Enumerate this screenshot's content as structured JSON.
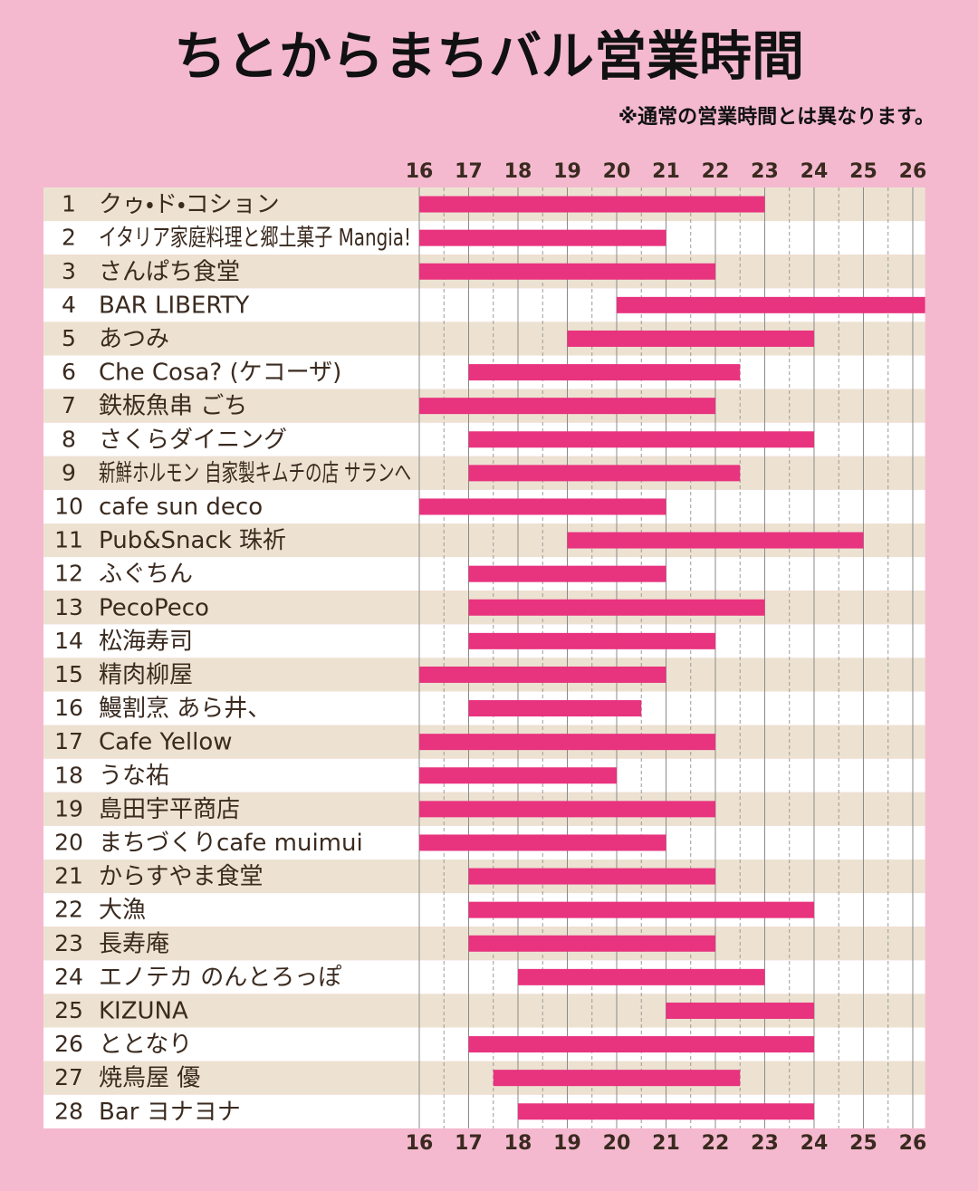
{
  "chart_data": {
    "type": "gantt",
    "title": "ちとからまちバル営業時間",
    "subtitle": "※通常の営業時間とは異なります。",
    "xlim": [
      16,
      26.25
    ],
    "xticks": [
      16,
      17,
      18,
      19,
      20,
      21,
      22,
      23,
      24,
      25,
      26
    ],
    "minor_xticks": [
      16.5,
      17.5,
      18.5,
      19.5,
      20.5,
      21.5,
      22.5,
      23.5,
      24.5,
      25.5
    ],
    "color": "#e8337f",
    "ids": [
      1,
      2,
      3,
      4,
      5,
      6,
      7,
      8,
      9,
      10,
      11,
      12,
      13,
      14,
      15,
      16,
      17,
      18,
      19,
      20,
      21,
      22,
      23,
      24,
      25,
      26,
      27,
      28
    ],
    "categories": [
      "クゥ・ド・コション",
      "イタリア家庭料理と郷土菓子 Mangia!",
      "さんぱち食堂",
      "BAR LIBERTY",
      "あつみ",
      "Che Cosa? (ケコーザ)",
      "鉄板魚串 ごち",
      "さくらダイニング",
      "新鮮ホルモン 自家製キムチの店 サランへ",
      "cafe sun deco",
      "Pub&Snack 珠祈",
      "ふぐちん",
      "PecoPeco",
      "松海寿司",
      "精肉柳屋",
      "鰻割烹 あら井、",
      "Cafe Yellow",
      "うな祐",
      "島田宇平商店",
      "まちづくりcafe muimui",
      "からすやま食堂",
      "大漁",
      "長寿庵",
      "エノテカ のんとろっぽ",
      "KIZUNA",
      "ととなり",
      "焼鳥屋 優",
      "Bar ヨナヨナ"
    ],
    "start": [
      16,
      16,
      16,
      20,
      19,
      17,
      16,
      17,
      17,
      16,
      19,
      17,
      17,
      17,
      16,
      17,
      16,
      16,
      16,
      16,
      17,
      17,
      17,
      18,
      21,
      17,
      17.5,
      18
    ],
    "end": [
      23,
      21,
      22,
      26.25,
      24,
      22.5,
      22,
      24,
      22.5,
      21,
      25,
      21,
      23,
      22,
      21,
      20.5,
      22,
      20,
      22,
      21,
      22,
      24,
      22,
      23,
      24,
      24,
      22.5,
      24
    ]
  }
}
